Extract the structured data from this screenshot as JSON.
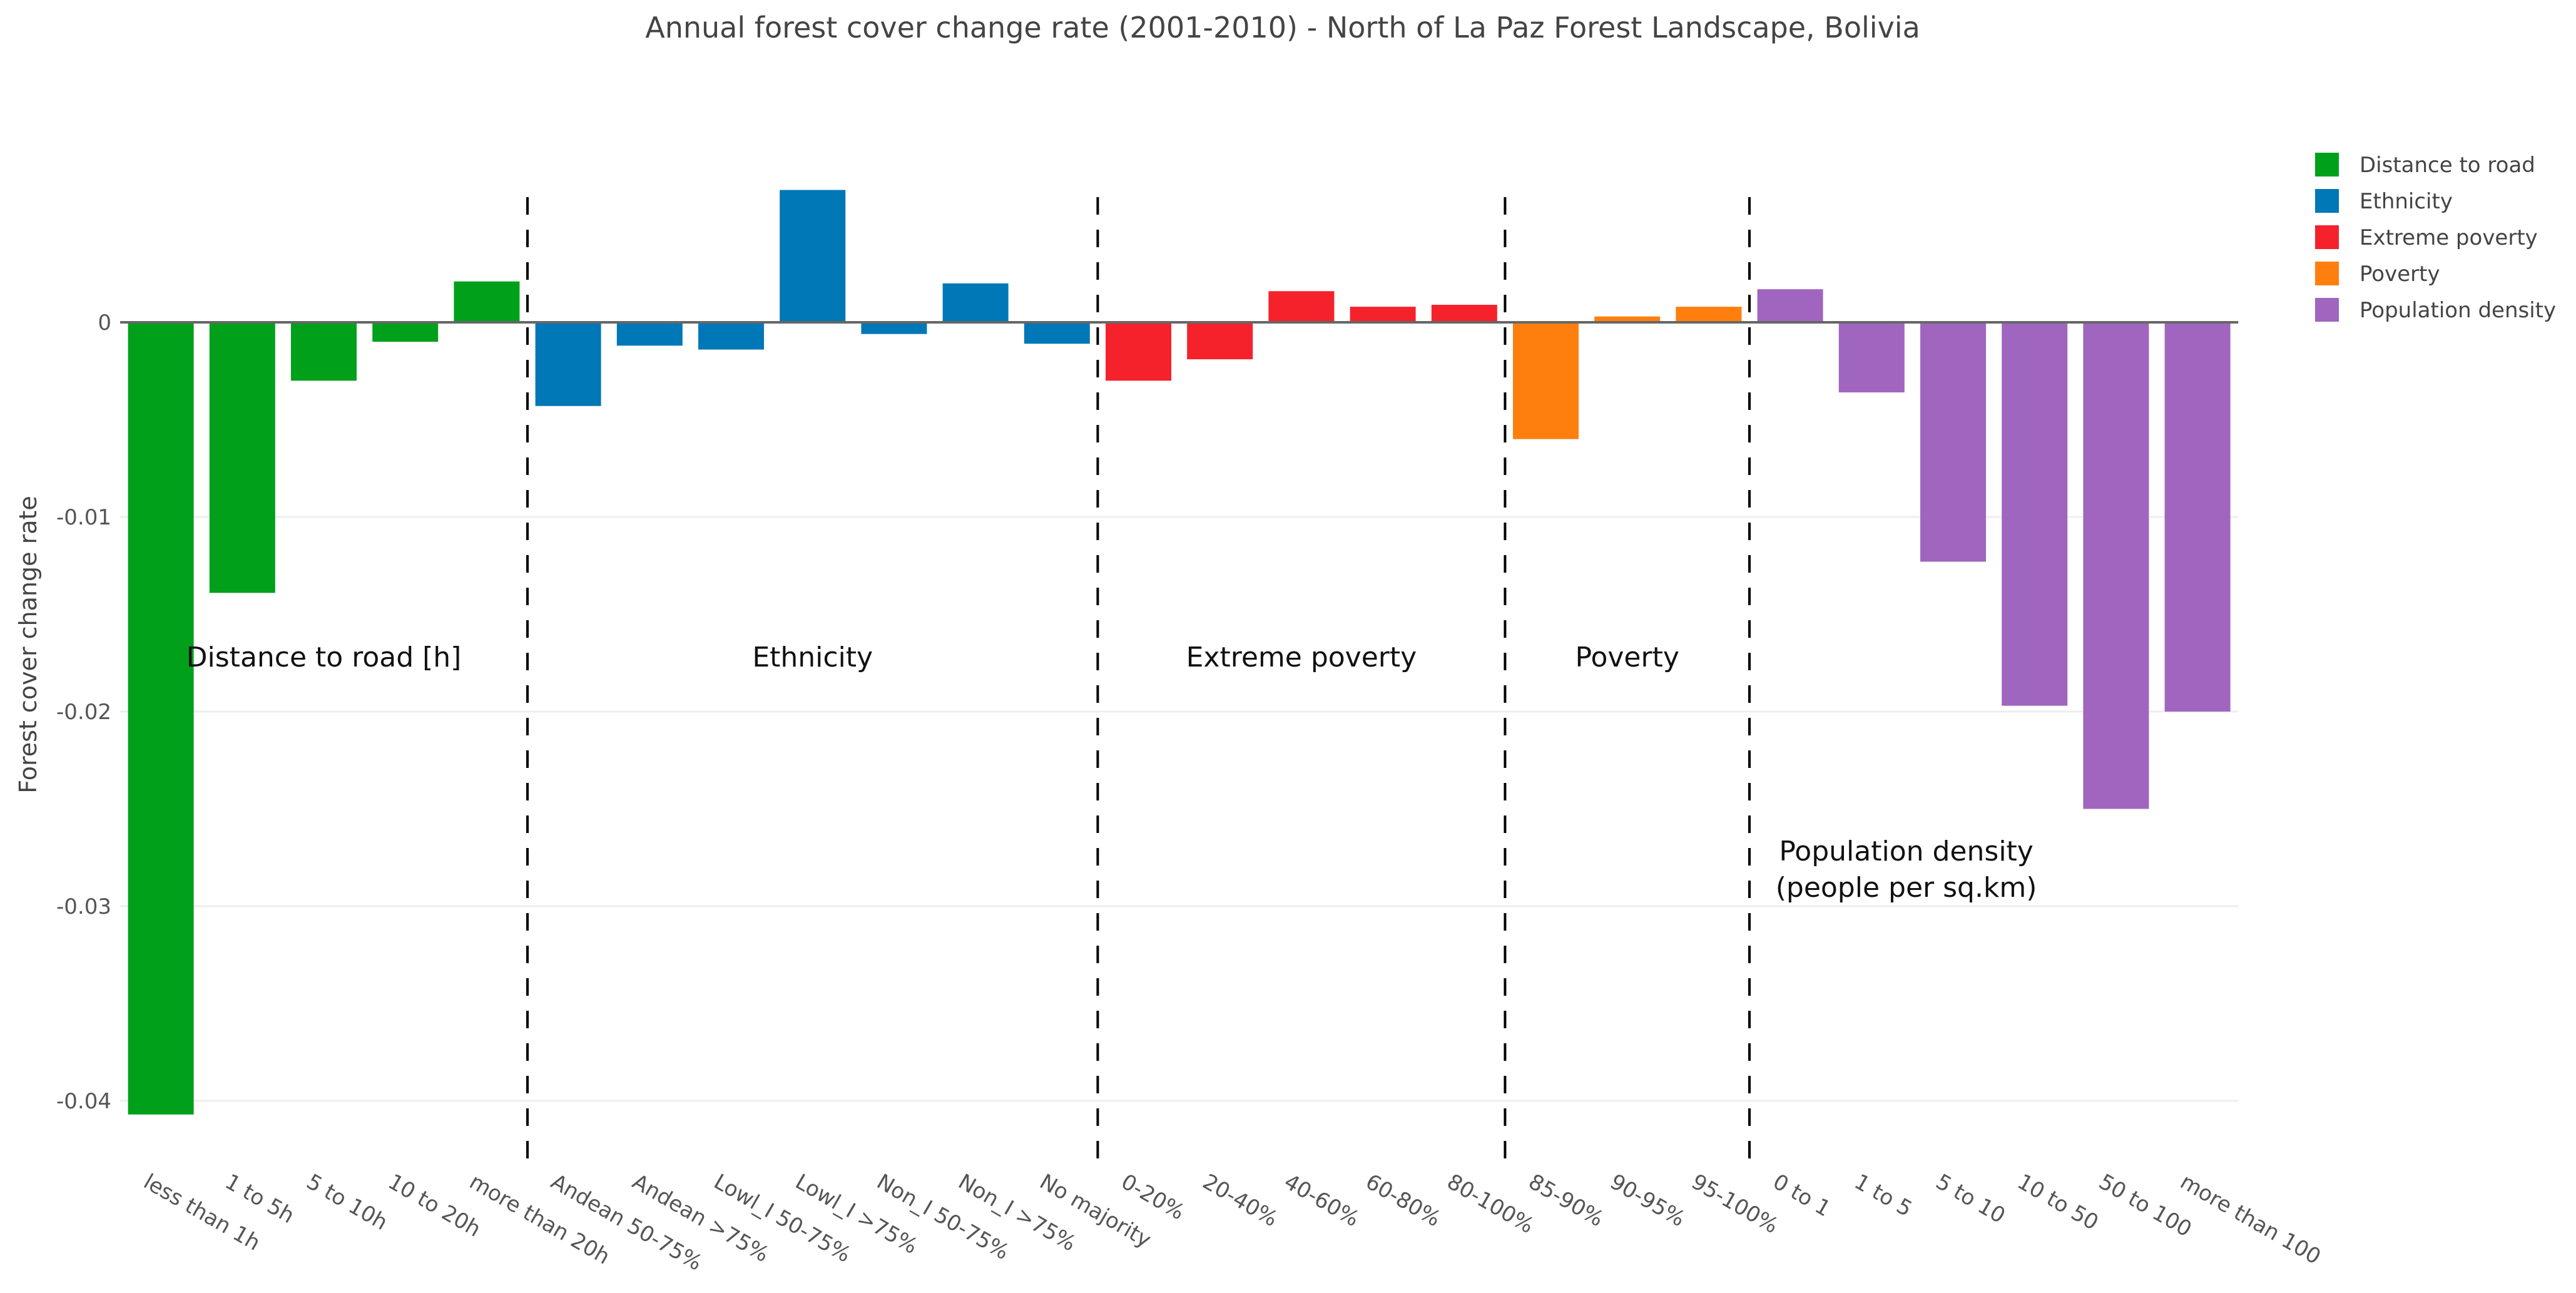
{
  "chart_data": {
    "type": "bar",
    "title": "Annual forest cover change rate (2001-2010) - North of La Paz Forest Landscape, Bolivia",
    "xlabel": "",
    "ylabel": "Forest cover change rate",
    "ylim": [
      -0.041,
      0.0075
    ],
    "yticks": [
      0,
      -0.01,
      -0.02,
      -0.03,
      -0.04
    ],
    "ytick_labels": [
      "0",
      "-0.01",
      "-0.02",
      "-0.03",
      "-0.04"
    ],
    "grid": true,
    "legend_position": "top-right",
    "series": [
      {
        "name": "Distance to road",
        "color": "#00a01a",
        "annotation": [
          "Distance to road [h]"
        ],
        "categories": [
          "less than 1h",
          "1 to 5h",
          "5 to 10h",
          "10 to 20h",
          "more than 20h"
        ],
        "values": [
          -0.0407,
          -0.0139,
          -0.003,
          -0.001,
          0.0021
        ]
      },
      {
        "name": "Ethnicity",
        "color": "#0077b6",
        "annotation": [
          "Ethnicity"
        ],
        "categories": [
          "Andean 50-75%",
          "Andean >75%",
          "Lowl_I 50-75%",
          "Lowl_I >75%",
          "Non_I 50-75%",
          "Non_I >75%",
          "No majority"
        ],
        "values": [
          -0.0043,
          -0.0012,
          -0.0014,
          0.0068,
          -0.0006,
          0.002,
          -0.0011
        ]
      },
      {
        "name": "Extreme poverty",
        "color": "#f5222b",
        "annotation": [
          "Extreme poverty"
        ],
        "categories": [
          "0-20%",
          "20-40%",
          "40-60%",
          "60-80%",
          "80-100%"
        ],
        "values": [
          -0.003,
          -0.0019,
          0.0016,
          0.0008,
          0.0009
        ]
      },
      {
        "name": "Poverty",
        "color": "#ff7f0e",
        "annotation": [
          "Poverty"
        ],
        "categories": [
          "85-90%",
          "90-95%",
          "95-100%"
        ],
        "values": [
          -0.006,
          0.0003,
          0.0008
        ]
      },
      {
        "name": "Population density",
        "color": "#a066bf",
        "annotation": [
          "Population density",
          "(people per sq.km)"
        ],
        "categories": [
          "0 to 1",
          "1 to 5",
          "5 to 10",
          "10 to 50",
          "50 to 100",
          "more than 100"
        ],
        "values": [
          0.0017,
          -0.0036,
          -0.0123,
          -0.0197,
          -0.025,
          -0.02
        ]
      }
    ]
  }
}
